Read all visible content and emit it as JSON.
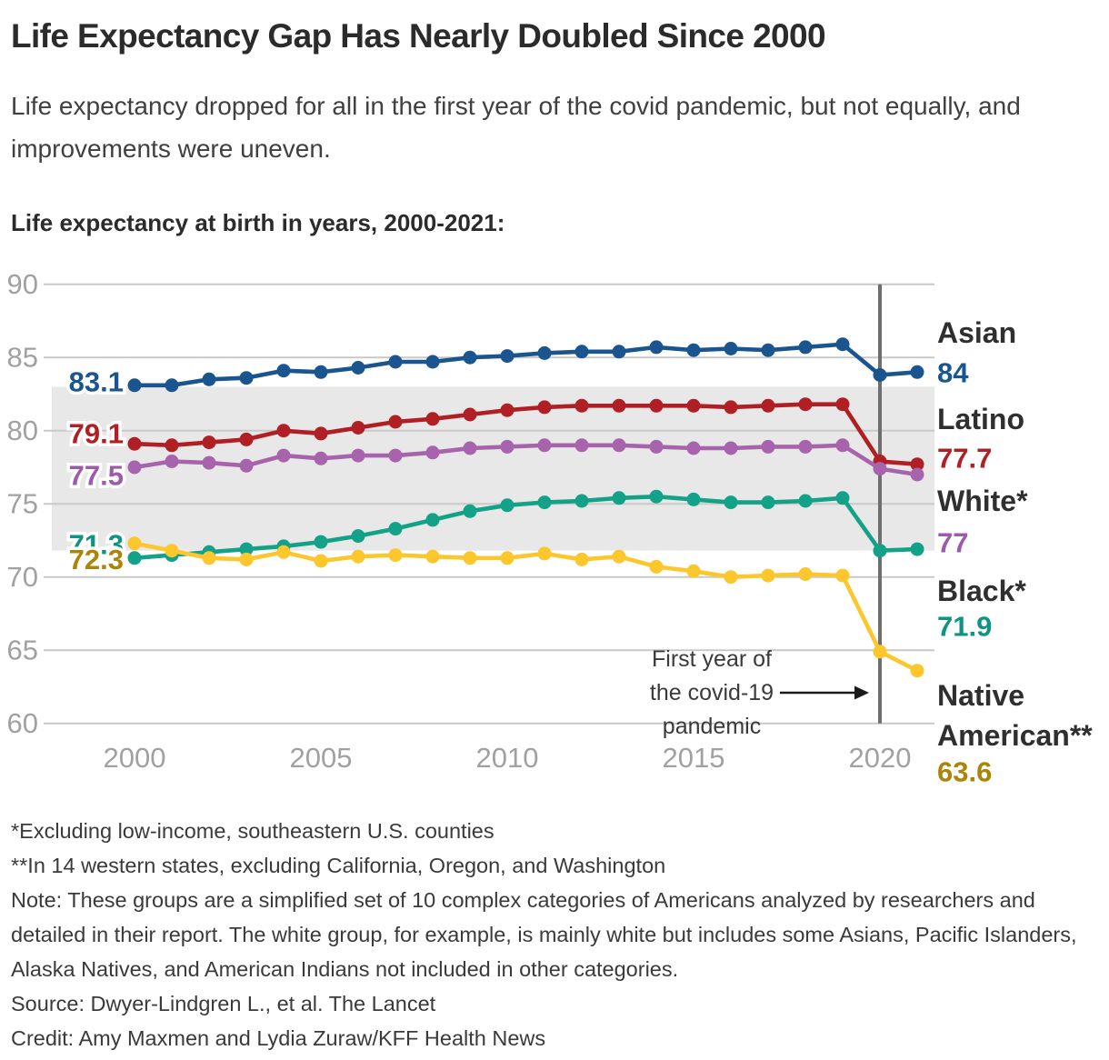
{
  "header": {
    "title": "Life Expectancy Gap Has Nearly Doubled Since 2000",
    "subtitle": "Life expectancy dropped for all in the first year of the covid pandemic, but not equally, and improvements were uneven.",
    "chart_label": "Life expectancy at birth in years, 2000-2021:"
  },
  "chart_data": {
    "type": "line",
    "title": "Life expectancy at birth in years, 2000-2021:",
    "xlabel": "",
    "ylabel": "",
    "ylim": [
      60,
      90
    ],
    "yticks": [
      60,
      65,
      70,
      75,
      80,
      85,
      90
    ],
    "xticks": [
      2000,
      2005,
      2010,
      2015,
      2020
    ],
    "grid": true,
    "legend_position": "right",
    "x": [
      2000,
      2001,
      2002,
      2003,
      2004,
      2005,
      2006,
      2007,
      2008,
      2009,
      2010,
      2011,
      2012,
      2013,
      2014,
      2015,
      2016,
      2017,
      2018,
      2019,
      2020,
      2021
    ],
    "series": [
      {
        "name": "Asian",
        "color": "#1a558f",
        "start_label": "83.1",
        "end_label": "84",
        "values": [
          83.1,
          83.1,
          83.5,
          83.6,
          84.1,
          84.0,
          84.3,
          84.7,
          84.7,
          85.0,
          85.1,
          85.3,
          85.4,
          85.4,
          85.7,
          85.5,
          85.6,
          85.5,
          85.7,
          85.9,
          83.8,
          84.0
        ]
      },
      {
        "name": "Latino",
        "color": "#b01f24",
        "start_label": "79.1",
        "end_label": "77.7",
        "values": [
          79.1,
          79.0,
          79.2,
          79.4,
          80.0,
          79.8,
          80.2,
          80.6,
          80.8,
          81.1,
          81.4,
          81.6,
          81.7,
          81.7,
          81.7,
          81.7,
          81.6,
          81.7,
          81.8,
          81.8,
          77.9,
          77.7
        ]
      },
      {
        "name": "White*",
        "color": "#a763ab",
        "label_color": "#9c59ad",
        "start_label": "77.5",
        "end_label": "77",
        "values": [
          77.5,
          77.9,
          77.8,
          77.6,
          78.3,
          78.1,
          78.3,
          78.3,
          78.5,
          78.8,
          78.9,
          79.0,
          79.0,
          79.0,
          78.9,
          78.8,
          78.8,
          78.9,
          78.9,
          79.0,
          77.4,
          77.0
        ]
      },
      {
        "name": "Black*",
        "color": "#13a287",
        "label_color": "#0e9480",
        "start_label": "71.3",
        "end_label": "71.9",
        "values": [
          71.3,
          71.5,
          71.7,
          71.9,
          72.1,
          72.4,
          72.8,
          73.3,
          73.9,
          74.5,
          74.9,
          75.1,
          75.2,
          75.4,
          75.5,
          75.3,
          75.1,
          75.1,
          75.2,
          75.4,
          71.8,
          71.9
        ]
      },
      {
        "name": "Native American**",
        "color": "#fcc62d",
        "label_color": "#ab8409",
        "start_label": "72.3",
        "end_label": "63.6",
        "values": [
          72.3,
          71.8,
          71.3,
          71.2,
          71.7,
          71.1,
          71.4,
          71.5,
          71.4,
          71.3,
          71.3,
          71.6,
          71.2,
          71.4,
          70.7,
          70.4,
          70.0,
          70.1,
          70.2,
          70.1,
          64.9,
          63.6
        ]
      }
    ],
    "band": {
      "from": 71.8,
      "to": 83.0,
      "color": "#e8e8e8"
    },
    "vline": {
      "x": 2020,
      "color": "#6f6f6f"
    },
    "annotation": {
      "lines": [
        "First year of",
        "the covid-19",
        "pandemic"
      ]
    }
  },
  "footnotes": [
    "*Excluding low-income, southeastern U.S. counties",
    "**In 14 western states, excluding California, Oregon, and Washington",
    "Note: These groups are a simplified set of 10 complex categories of Americans analyzed by researchers and detailed in their report. The white group, for example, is mainly white but includes some Asians, Pacific Islanders, Alaska Natives, and American Indians not included in other categories.",
    "Source: Dwyer-Lindgren L., et al. The Lancet",
    "Credit: Amy Maxmen and Lydia Zuraw/KFF Health News"
  ]
}
